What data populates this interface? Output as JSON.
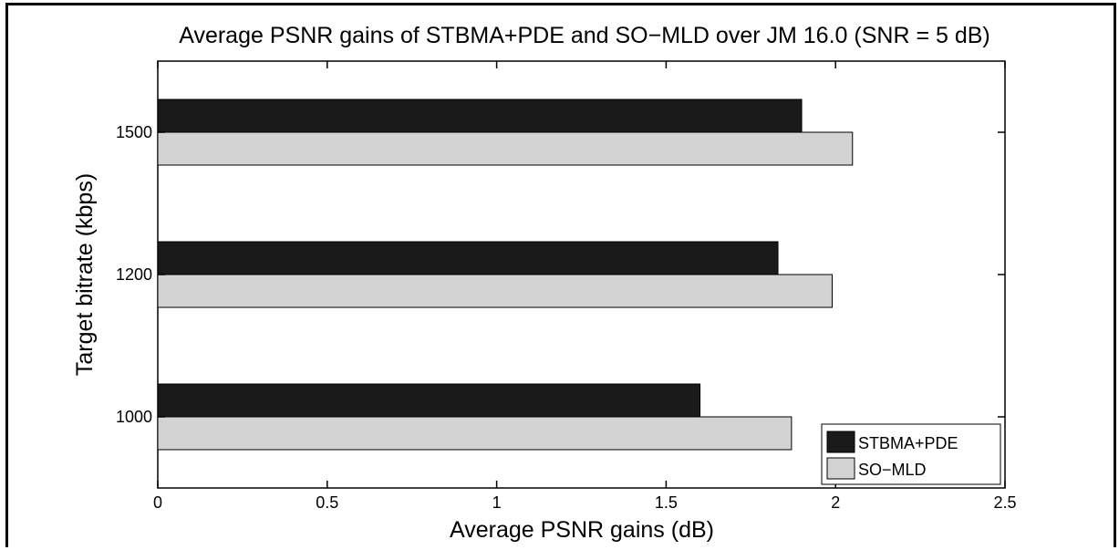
{
  "chart_data": {
    "type": "bar",
    "orientation": "horizontal",
    "title": "Average PSNR gains of STBMA+PDE and SO−MLD over JM 16.0 (SNR = 5 dB)",
    "xlabel": "Average PSNR gains (dB)",
    "ylabel": "Target bitrate (kbps)",
    "categories": [
      "1000",
      "1200",
      "1500"
    ],
    "series": [
      {
        "name": "STBMA+PDE",
        "color": "#1a1a1a",
        "values": [
          1.6,
          1.83,
          1.9
        ]
      },
      {
        "name": "SO−MLD",
        "color": "#d3d3d3",
        "values": [
          1.87,
          1.99,
          2.05
        ]
      }
    ],
    "xlim": [
      0,
      2.5
    ],
    "xticks": [
      "0",
      "0.5",
      "1",
      "1.5",
      "2",
      "2.5"
    ],
    "grid": false,
    "legend_position": "bottom-right"
  }
}
